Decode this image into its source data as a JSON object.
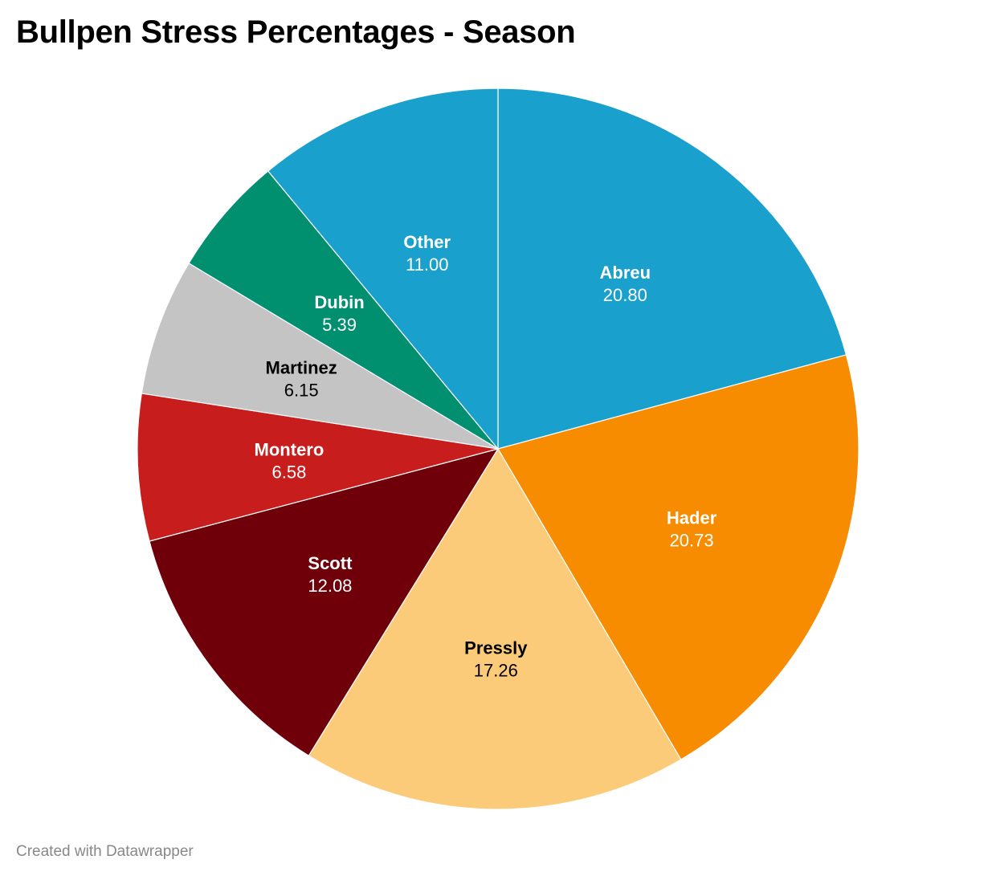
{
  "chart_data": {
    "type": "pie",
    "title": "Bullpen Stress Percentages - Season",
    "categories": [
      "Abreu",
      "Hader",
      "Pressly",
      "Scott",
      "Montero",
      "Martinez",
      "Dubin",
      "Other"
    ],
    "values": [
      20.8,
      20.73,
      17.26,
      12.08,
      6.58,
      6.15,
      5.39,
      11.0
    ],
    "value_labels": [
      "20.80",
      "20.73",
      "17.26",
      "12.08",
      "6.58",
      "6.15",
      "5.39",
      "11.00"
    ],
    "colors": [
      "#1aa0cd",
      "#f88c00",
      "#fccb7a",
      "#6f000a",
      "#c71e1d",
      "#c4c4c4",
      "#008f6f",
      "#1aa0cd"
    ],
    "label_colors": [
      "#ffffff",
      "#ffffff",
      "#000000",
      "#ffffff",
      "#ffffff",
      "#000000",
      "#ffffff",
      "#ffffff"
    ],
    "start": "12 o'clock",
    "direction": "clockwise",
    "legend": "none",
    "labels": "inside slices"
  },
  "footer": {
    "credit": "Created with Datawrapper"
  }
}
